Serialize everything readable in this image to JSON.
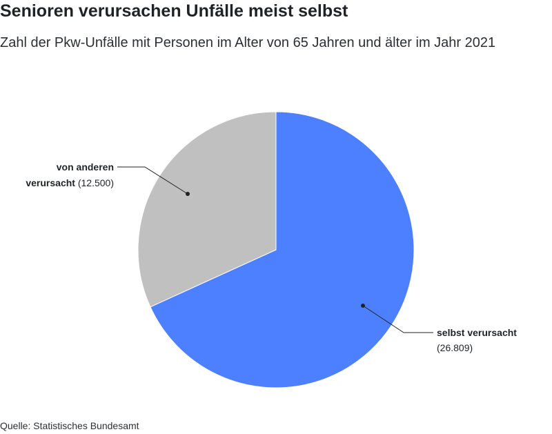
{
  "title": "Senioren verursachen Unfälle meist selbst",
  "subtitle": "Zahl der Pkw-Unfälle mit Personen im Alter von 65 Jahren und älter im Jahr 2021",
  "source": "Quelle: Statistisches Bundesamt",
  "chart_data": {
    "type": "pie",
    "slices": [
      {
        "label_line1": "selbst verursacht",
        "label_line2": "",
        "value": 26809,
        "value_text": "(26.809)",
        "color": "#4d80ff"
      },
      {
        "label_line1": "von anderen",
        "label_line2": "verursacht",
        "value": 12500,
        "value_text": "(12.500)",
        "color": "#c0c0c0"
      }
    ]
  }
}
